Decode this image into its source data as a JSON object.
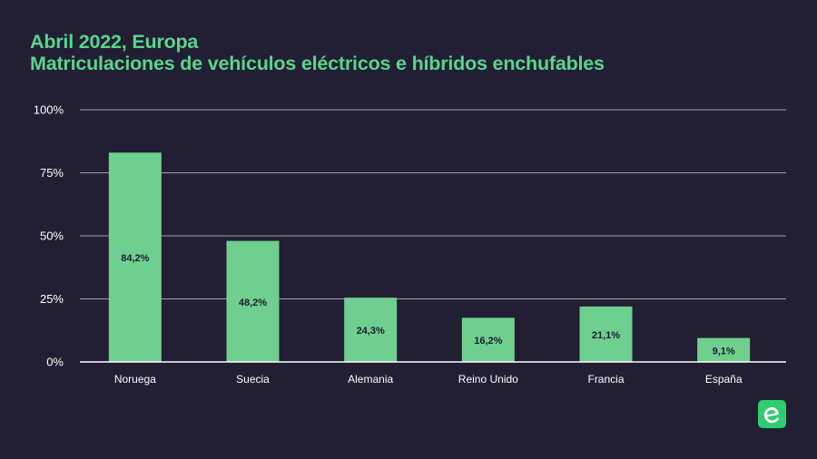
{
  "title": "Abril 2022, Europa",
  "subtitle": "Matriculaciones de vehículos eléctricos e híbridos enchufables",
  "colors": {
    "background": "#221e33",
    "title": "#58d68d",
    "bar": "#6fcf8f",
    "grid": "#cfcfd6",
    "text": "#ffffff",
    "bar_label": "#1e1a2e",
    "logo": "#2ecc71"
  },
  "logo_icon": "e-letter-logo",
  "chart_data": {
    "type": "bar",
    "title": "Abril 2022, Europa",
    "subtitle": "Matriculaciones de vehículos eléctricos e híbridos enchufables",
    "categories": [
      "Noruega",
      "Suecia",
      "Alemania",
      "Reino Unido",
      "Francia",
      "España"
    ],
    "values": [
      84.2,
      48.2,
      24.3,
      16.2,
      21.1,
      9.1
    ],
    "value_labels": [
      "84,2%",
      "48,2%",
      "24,3%",
      "16,2%",
      "21,1%",
      "9,1%"
    ],
    "display_values": [
      83,
      48,
      25.5,
      17.5,
      22,
      9.5
    ],
    "yticks": [
      {
        "value": 0,
        "label": "0%"
      },
      {
        "value": 25,
        "label": "25%"
      },
      {
        "value": 50,
        "label": "50%"
      },
      {
        "value": 75,
        "label": "75%"
      },
      {
        "value": 100,
        "label": "100%"
      }
    ],
    "ylim": [
      0,
      100
    ],
    "xlabel": "",
    "ylabel": "",
    "grid": true,
    "legend": "none"
  }
}
